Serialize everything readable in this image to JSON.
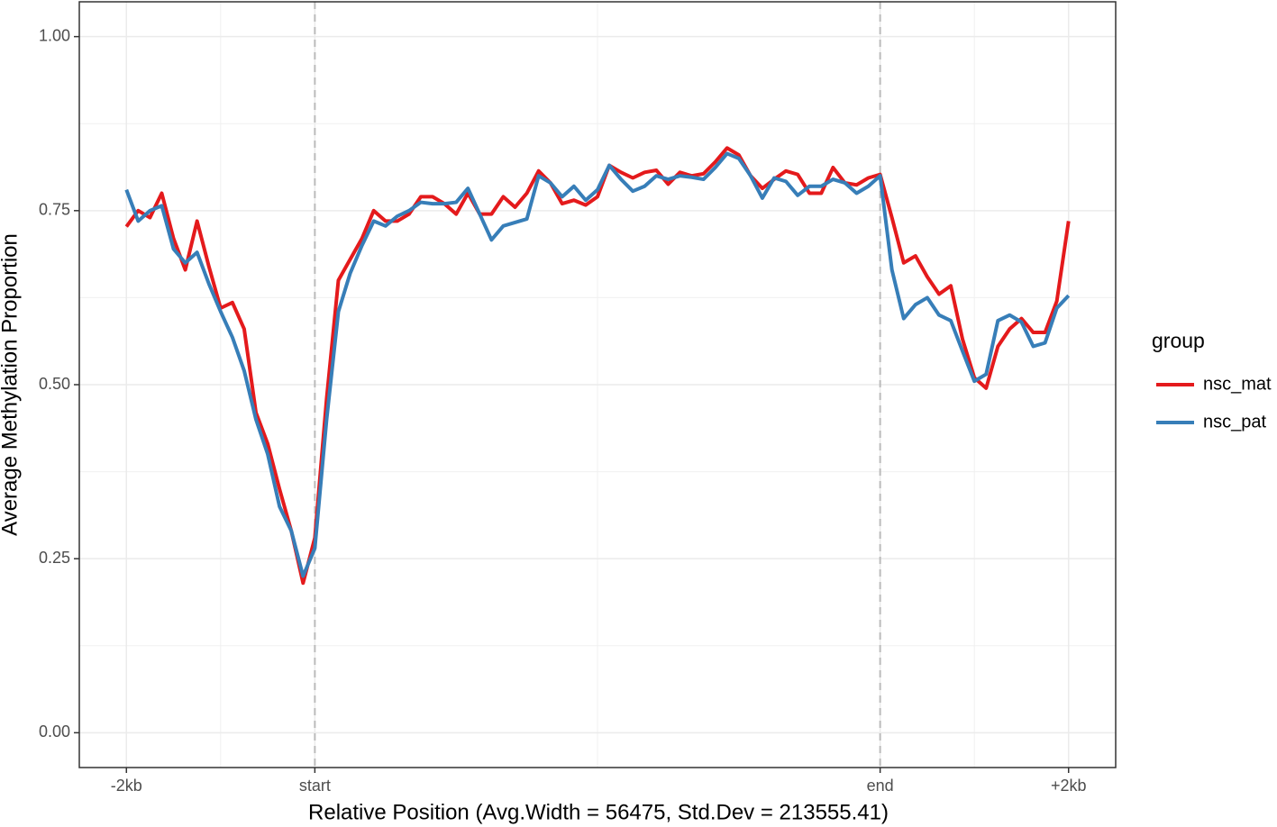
{
  "chart_data": {
    "type": "line",
    "x_label": "Relative Position (Avg.Width = 56475, Std.Dev = 213555.41)",
    "y_label": "Average Methylation Proportion",
    "legend_title": "group",
    "legend": "right",
    "grid": true,
    "vlines": [
      16,
      64
    ],
    "xlim": [
      -4,
      84
    ],
    "ylim": [
      -0.05,
      1.05
    ],
    "xticks": [
      {
        "value": 0,
        "label": "-2kb"
      },
      {
        "value": 16,
        "label": "start"
      },
      {
        "value": 64,
        "label": "end"
      },
      {
        "value": 80,
        "label": "+2kb"
      }
    ],
    "yticks": [
      {
        "value": 0,
        "label": "0.00"
      },
      0.25,
      {
        "value": 0.5,
        "label": "0.50"
      },
      0.75,
      {
        "value": 1,
        "label": "1.00"
      }
    ],
    "x": [
      0,
      1,
      2,
      3,
      4,
      5,
      6,
      7,
      8,
      9,
      10,
      11,
      12,
      13,
      14,
      15,
      16,
      17,
      18,
      19,
      20,
      21,
      22,
      23,
      24,
      25,
      26,
      27,
      28,
      29,
      30,
      31,
      32,
      33,
      34,
      35,
      36,
      37,
      38,
      39,
      40,
      41,
      42,
      43,
      44,
      45,
      46,
      47,
      48,
      49,
      50,
      51,
      52,
      53,
      54,
      55,
      56,
      57,
      58,
      59,
      60,
      61,
      62,
      63,
      64,
      65,
      66,
      67,
      68,
      69,
      70,
      71,
      72,
      73,
      74,
      75,
      76,
      77,
      78,
      79,
      80
    ],
    "series": [
      {
        "name": "nsc_mat",
        "color": "#e41a1c",
        "values": [
          0.727,
          0.75,
          0.74,
          0.775,
          0.71,
          0.665,
          0.735,
          0.67,
          0.61,
          0.618,
          0.58,
          0.46,
          0.415,
          0.35,
          0.29,
          0.215,
          0.28,
          0.48,
          0.65,
          0.68,
          0.71,
          0.75,
          0.735,
          0.735,
          0.745,
          0.77,
          0.77,
          0.76,
          0.745,
          0.775,
          0.745,
          0.745,
          0.77,
          0.755,
          0.775,
          0.807,
          0.79,
          0.76,
          0.765,
          0.758,
          0.77,
          0.815,
          0.805,
          0.797,
          0.805,
          0.808,
          0.788,
          0.805,
          0.8,
          0.803,
          0.82,
          0.84,
          0.83,
          0.8,
          0.782,
          0.795,
          0.807,
          0.802,
          0.775,
          0.775,
          0.812,
          0.79,
          0.787,
          0.797,
          0.802,
          0.74,
          0.675,
          0.685,
          0.655,
          0.63,
          0.642,
          0.565,
          0.51,
          0.495,
          0.555,
          0.58,
          0.595,
          0.575,
          0.575,
          0.62,
          0.735
        ]
      },
      {
        "name": "nsc_pat",
        "color": "#377eb8",
        "values": [
          0.78,
          0.735,
          0.75,
          0.757,
          0.695,
          0.675,
          0.69,
          0.645,
          0.605,
          0.568,
          0.52,
          0.45,
          0.4,
          0.325,
          0.29,
          0.225,
          0.265,
          0.45,
          0.605,
          0.66,
          0.7,
          0.735,
          0.728,
          0.742,
          0.75,
          0.762,
          0.76,
          0.76,
          0.762,
          0.782,
          0.745,
          0.708,
          0.728,
          0.733,
          0.738,
          0.8,
          0.79,
          0.77,
          0.785,
          0.765,
          0.78,
          0.815,
          0.795,
          0.778,
          0.785,
          0.8,
          0.795,
          0.8,
          0.798,
          0.795,
          0.812,
          0.832,
          0.825,
          0.8,
          0.768,
          0.797,
          0.792,
          0.772,
          0.785,
          0.785,
          0.795,
          0.79,
          0.775,
          0.785,
          0.8,
          0.665,
          0.595,
          0.615,
          0.625,
          0.6,
          0.592,
          0.548,
          0.505,
          0.515,
          0.592,
          0.6,
          0.59,
          0.555,
          0.56,
          0.61,
          0.628
        ]
      }
    ]
  }
}
